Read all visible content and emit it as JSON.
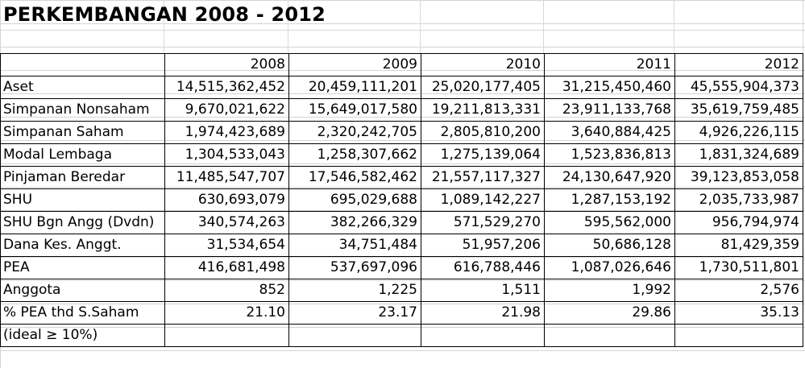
{
  "title": "PERKEMBANGAN 2008 - 2012",
  "table": {
    "years": [
      "2008",
      "2009",
      "2010",
      "2011",
      "2012"
    ],
    "rows": [
      {
        "label": "Aset",
        "values": [
          "14,515,362,452",
          "20,459,111,201",
          "25,020,177,405",
          "31,215,450,460",
          "45,555,904,373"
        ]
      },
      {
        "label": "Simpanan Nonsaham",
        "values": [
          "9,670,021,622",
          "15,649,017,580",
          "19,211,813,331",
          "23,911,133,768",
          "35,619,759,485"
        ]
      },
      {
        "label": "Simpanan Saham",
        "values": [
          "1,974,423,689",
          "2,320,242,705",
          "2,805,810,200",
          "3,640,884,425",
          "4,926,226,115"
        ]
      },
      {
        "label": "Modal Lembaga",
        "values": [
          "1,304,533,043",
          "1,258,307,662",
          "1,275,139,064",
          "1,523,836,813",
          "1,831,324,689"
        ]
      },
      {
        "label": "Pinjaman Beredar",
        "values": [
          "11,485,547,707",
          "17,546,582,462",
          "21,557,117,327",
          "24,130,647,920",
          "39,123,853,058"
        ]
      },
      {
        "label": "SHU",
        "values": [
          "630,693,079",
          "695,029,688",
          "1,089,142,227",
          "1,287,153,192",
          "2,035,733,987"
        ]
      },
      {
        "label": "SHU Bgn Angg (Dvdn)",
        "values": [
          "340,574,263",
          "382,266,329",
          "571,529,270",
          "595,562,000",
          "956,794,974"
        ]
      },
      {
        "label": "Dana Kes. Anggt.",
        "values": [
          "31,534,654",
          "34,751,484",
          "51,957,206",
          "50,686,128",
          "81,429,359"
        ]
      },
      {
        "label": "PEA",
        "values": [
          "416,681,498",
          "537,697,096",
          "616,788,446",
          "1,087,026,646",
          "1,730,511,801"
        ]
      },
      {
        "label": "Anggota",
        "values": [
          "852",
          "1,225",
          "1,511",
          "1,992",
          "2,576"
        ]
      },
      {
        "label": "% PEA thd S.Saham",
        "values": [
          "21.10",
          "23.17",
          "21.98",
          "29.86",
          "35.13"
        ]
      },
      {
        "label": "(ideal ≥ 10%)",
        "values": [
          "",
          "",
          "",
          "",
          ""
        ]
      }
    ]
  }
}
